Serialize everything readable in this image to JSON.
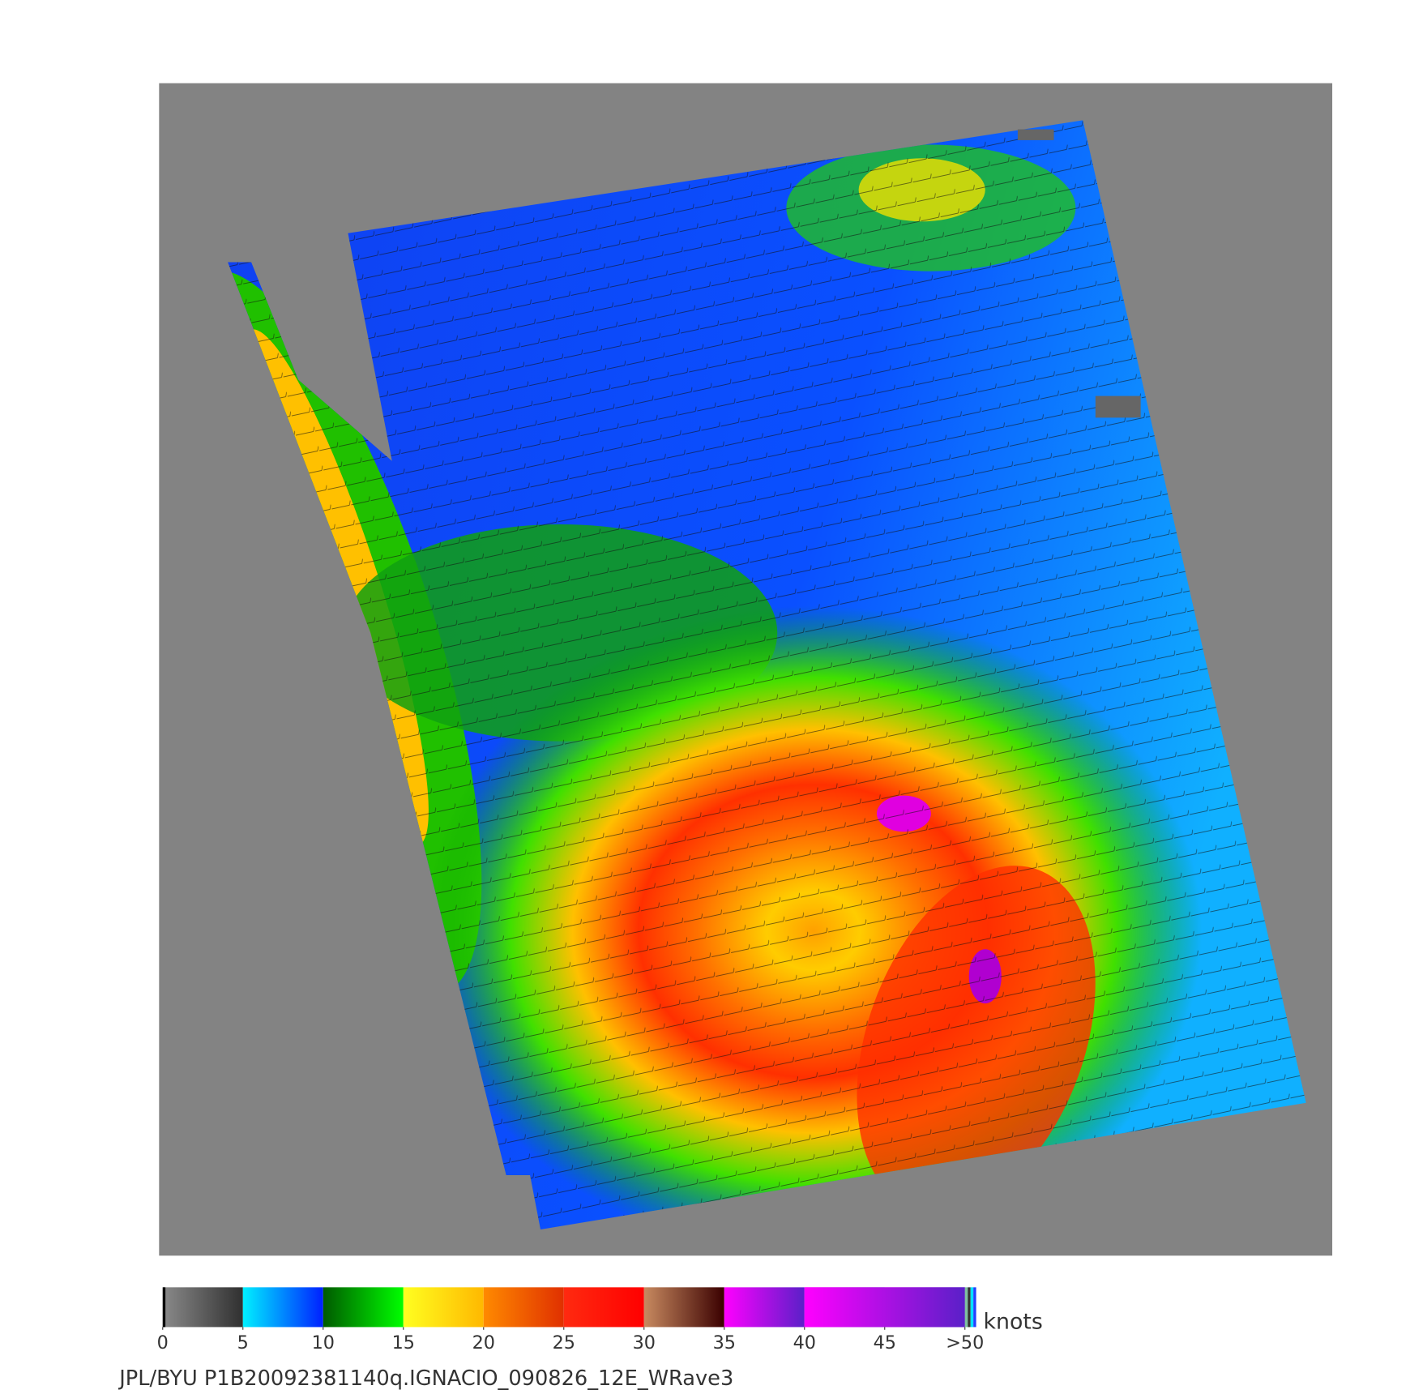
{
  "chart_data": {
    "type": "colorbar",
    "colorbar": {
      "lim": [
        0,
        50.7
      ],
      "unit": "knots",
      "ticks": [
        0,
        5,
        10,
        15,
        20,
        25,
        30,
        35,
        40,
        45,
        {
          "value": 50,
          "label": ">50"
        }
      ]
    },
    "footer": "JPL/BYU  P1B20092381140q.IGNACIO_090826_12E_WRave3"
  }
}
